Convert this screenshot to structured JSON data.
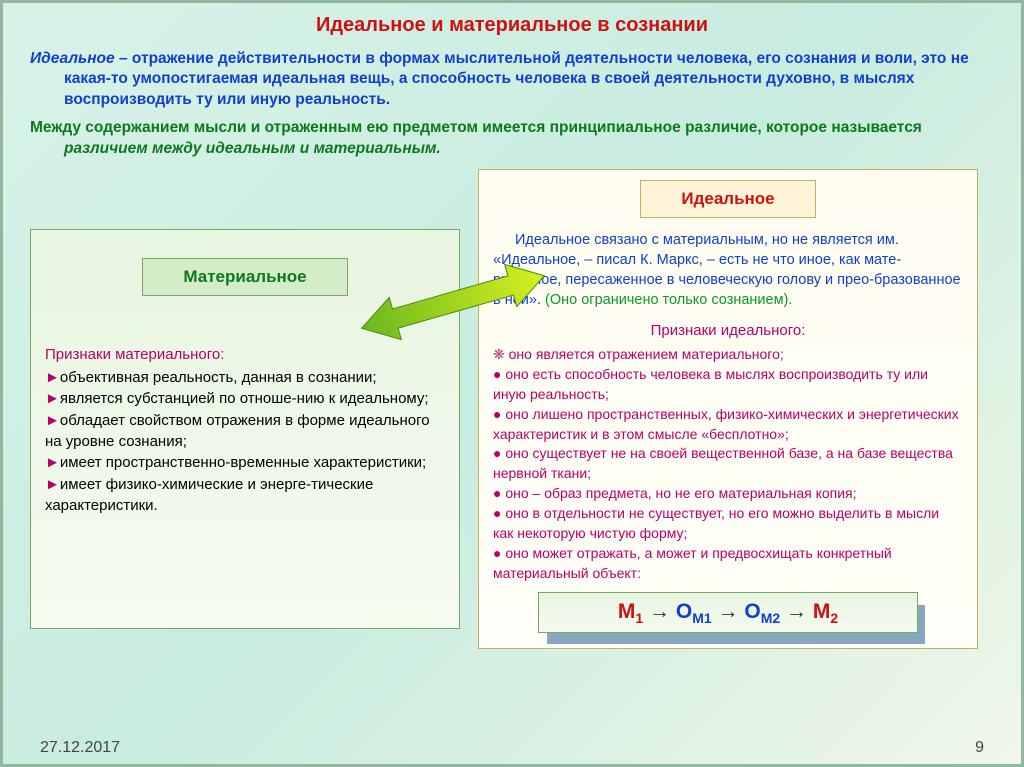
{
  "title": "Идеальное и материальное в сознании",
  "intro_lead": "Идеальное",
  "intro_body": " – отражение действительности в формах мыслительной деятельности человека, его сознания и воли, это не какая-то умопостигаемая идеальная вещь, а способность человека в своей деятельности духовно, в мыслях воспроизводить ту или иную реальность.",
  "intro2_a": "Между содержанием мысли и отраженным ею предметом имеется принципиальное различие, которое называется ",
  "intro2_b": "различием между идеальным и материальным.",
  "left": {
    "title": "Материальное",
    "signs_title": "Признаки материального:",
    "signs": [
      "объективная реальность, данная в сознании;",
      "является субстанцией по отноше-нию к идеальному;",
      "обладает свойством отражения в форме идеального на уровне сознания;",
      "имеет пространственно-временные характеристики;",
      "имеет физико-химические и энерге-тические характеристики."
    ]
  },
  "right": {
    "title": "Идеальное",
    "para_a": "Идеальное связано с материальным, но не является им. «Идеальное, – писал К. Маркс, – есть не что иное, как мате-риальное, пересаженное в человеческую голову и прео-бразованное в ней». ",
    "para_b": "(Оно ограничено только сознанием).",
    "signs_title": "Признаки идеального:",
    "signs": [
      "оно является отражением материального;",
      "оно есть способность человека в мыслях воспроизводить ту или иную реальность;",
      "оно лишено пространственных, физико-химических и энергетических характеристик и в этом смысле «бесплотно»;",
      "оно существует не на своей вещественной базе, а на базе вещества нервной ткани;",
      "оно – образ предмета, но не его материальная копия;",
      "оно в отдельности не существует, но его можно выделить в мысли как некоторую чистую форму;",
      "оно может отражать, а может и предвосхищать конкретный материальный объект:"
    ]
  },
  "formula": {
    "m1": "М",
    "s1": "1",
    "o1": "О",
    "os1": "М1",
    "o2": "О",
    "os2": "М2",
    "m2": "М",
    "s2": "2",
    "arrow": "→"
  },
  "footer": {
    "date": "27.12.2017",
    "page": "9"
  },
  "colors": {
    "title": "#d01010",
    "blue": "#1040d0",
    "green": "#0a7a1a",
    "magenta": "#b8006a"
  }
}
